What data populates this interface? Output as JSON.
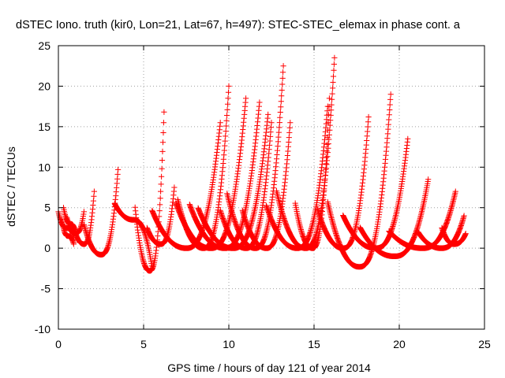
{
  "chart_data": {
    "type": "scatter",
    "title": "dSTEC Iono. truth (kir0, Lon=21, Lat=67, h=497): STEC-STEC_elemax in phase cont. a",
    "xlabel": "GPS time / hours of day 121 of year 2014",
    "ylabel": "dSTEC  / TECUs",
    "xlim": [
      0,
      25
    ],
    "ylim": [
      -10,
      25
    ],
    "xticks": [
      0,
      5,
      10,
      15,
      20,
      25
    ],
    "yticks": [
      -10,
      -5,
      0,
      5,
      10,
      15,
      20,
      25
    ],
    "grid": true,
    "marker": "+",
    "series_color": "#ff0000",
    "passes": [
      {
        "start": 0.0,
        "end": 0.9,
        "peak": 2.5,
        "end_value": 1.5
      },
      {
        "start": 0.2,
        "end": 0.9,
        "peak": 1.5,
        "end_value": 0.5
      },
      {
        "start": 0.3,
        "end": 1.1,
        "peak": 3.0,
        "end_value": 1.0
      },
      {
        "start": 0.5,
        "end": 1.5,
        "peak": 1.8,
        "end_value": 4.5
      },
      {
        "start": 0.9,
        "end": 2.1,
        "peak": 0.5,
        "end_value": 7.0
      },
      {
        "start": 1.5,
        "end": 3.5,
        "peak": -0.8,
        "end_value": 9.7
      },
      {
        "start": 3.3,
        "end": 5.5,
        "peak": 3.5,
        "end_value": -2.5
      },
      {
        "start": 4.5,
        "end": 6.2,
        "peak": -2.8,
        "end_value": 16.8
      },
      {
        "start": 5.2,
        "end": 6.8,
        "peak": 0.5,
        "end_value": 7.5
      },
      {
        "start": 5.5,
        "end": 9.5,
        "peak": 0.0,
        "end_value": 15.5
      },
      {
        "start": 6.9,
        "end": 11.0,
        "peak": 0.0,
        "end_value": 18.5
      },
      {
        "start": 7.0,
        "end": 10.0,
        "peak": 0.0,
        "end_value": 20.0
      },
      {
        "start": 7.7,
        "end": 11.8,
        "peak": 0.0,
        "end_value": 18.0
      },
      {
        "start": 8.2,
        "end": 12.3,
        "peak": 0.0,
        "end_value": 16.5
      },
      {
        "start": 9.5,
        "end": 12.5,
        "peak": 0.0,
        "end_value": 15.5
      },
      {
        "start": 9.9,
        "end": 13.2,
        "peak": 0.0,
        "end_value": 22.5
      },
      {
        "start": 10.8,
        "end": 13.6,
        "peak": 0.0,
        "end_value": 15.5
      },
      {
        "start": 12.2,
        "end": 15.8,
        "peak": 0.0,
        "end_value": 17.5
      },
      {
        "start": 12.8,
        "end": 16.2,
        "peak": 0.0,
        "end_value": 23.5
      },
      {
        "start": 13.9,
        "end": 15.9,
        "peak": 0.0,
        "end_value": 18.5
      },
      {
        "start": 15.2,
        "end": 18.2,
        "peak": 0.0,
        "end_value": 16.2
      },
      {
        "start": 15.8,
        "end": 19.5,
        "peak": -2.3,
        "end_value": 19.0
      },
      {
        "start": 16.7,
        "end": 20.5,
        "peak": 0.0,
        "end_value": 13.5
      },
      {
        "start": 17.7,
        "end": 21.7,
        "peak": -1.0,
        "end_value": 8.5
      },
      {
        "start": 19.4,
        "end": 23.3,
        "peak": 0.0,
        "end_value": 7.0
      },
      {
        "start": 21.1,
        "end": 23.8,
        "peak": 0.0,
        "end_value": 4.0
      },
      {
        "start": 22.5,
        "end": 23.9,
        "peak": 0.5,
        "end_value": 1.8
      }
    ]
  }
}
